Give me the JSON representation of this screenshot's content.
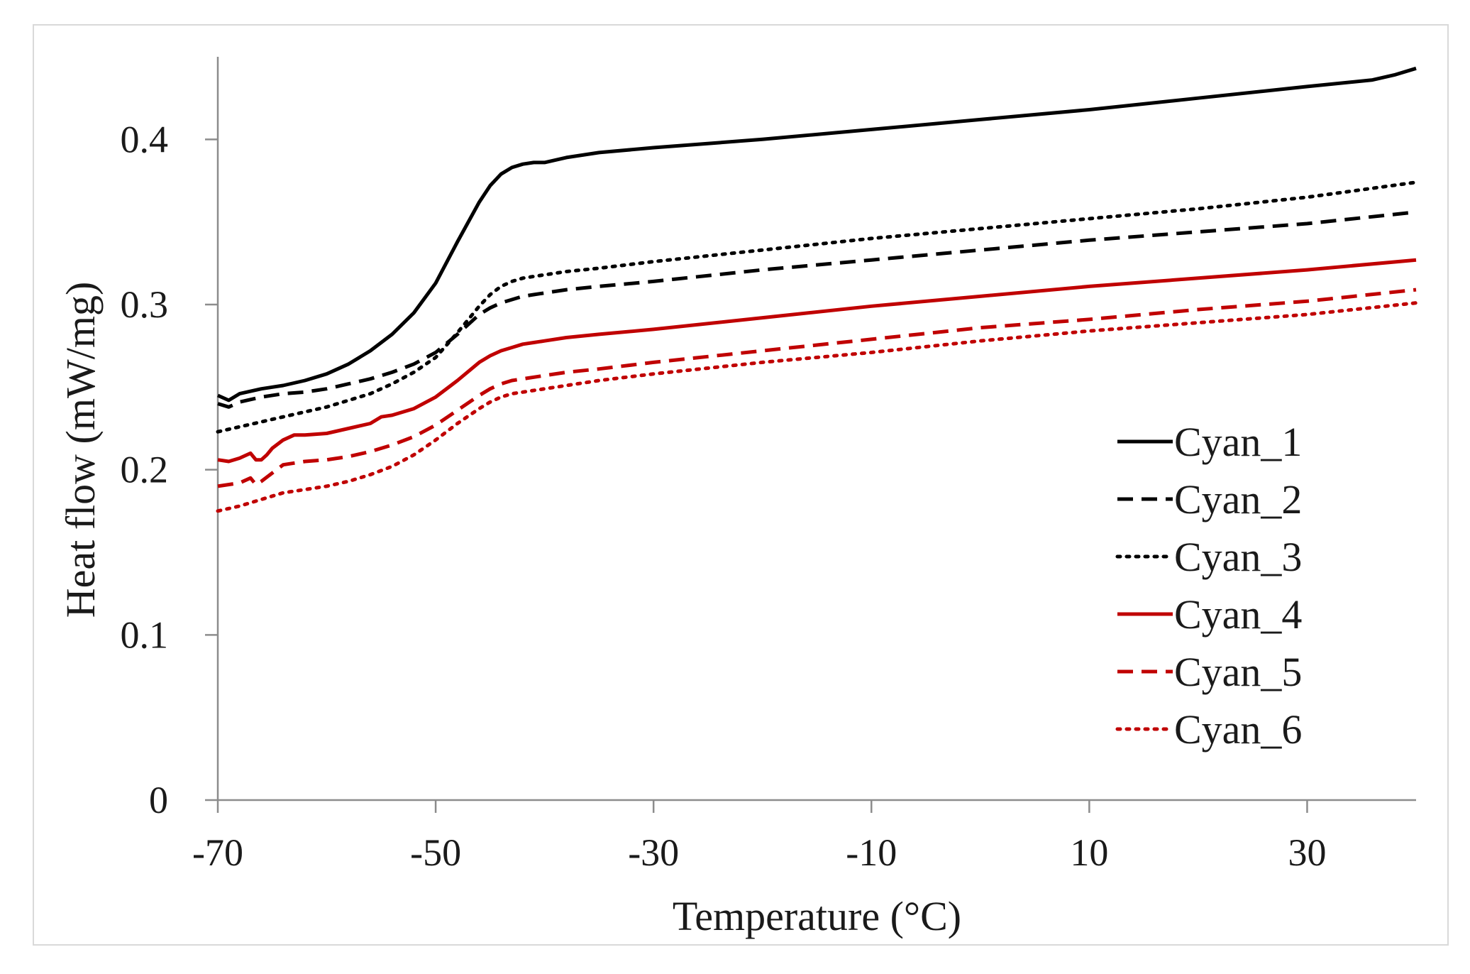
{
  "chart_data": {
    "type": "line",
    "title": "",
    "xlabel": "Temperature (°C)",
    "ylabel": "Heat flow (mW/mg)",
    "xlim": [
      -70,
      40
    ],
    "ylim": [
      0,
      0.45
    ],
    "xticks": [
      -70,
      -50,
      -30,
      -10,
      10,
      30
    ],
    "xtick_labels": [
      "-70",
      "-50",
      "-30",
      "-10",
      "10",
      "30"
    ],
    "yticks": [
      0,
      0.1,
      0.2,
      0.3,
      0.4
    ],
    "ytick_labels": [
      "0",
      "0.1",
      "0.2",
      "0.3",
      "0.4"
    ],
    "grid": false,
    "legend_position": "right",
    "series": [
      {
        "name": "Cyan_1",
        "color": "#000000",
        "dash": "solid",
        "x": [
          -70,
          -69,
          -68,
          -66,
          -64,
          -62,
          -60,
          -58,
          -56,
          -54,
          -52,
          -50,
          -48,
          -46,
          -45,
          -44,
          -43,
          -42,
          -41,
          -40,
          -38,
          -35,
          -30,
          -20,
          -10,
          0,
          10,
          20,
          30,
          36,
          38,
          40
        ],
        "y": [
          0.245,
          0.242,
          0.246,
          0.249,
          0.251,
          0.254,
          0.258,
          0.264,
          0.272,
          0.282,
          0.295,
          0.313,
          0.338,
          0.362,
          0.372,
          0.379,
          0.383,
          0.385,
          0.386,
          0.386,
          0.389,
          0.392,
          0.395,
          0.4,
          0.406,
          0.412,
          0.418,
          0.425,
          0.432,
          0.436,
          0.439,
          0.443
        ]
      },
      {
        "name": "Cyan_2",
        "color": "#000000",
        "dash": "dashed",
        "x": [
          -70,
          -69,
          -68,
          -66,
          -64,
          -62,
          -60,
          -58,
          -56,
          -54,
          -52,
          -50,
          -48,
          -46,
          -45,
          -44,
          -43,
          -42,
          -41,
          -40,
          -38,
          -35,
          -30,
          -20,
          -10,
          0,
          10,
          20,
          30,
          40
        ],
        "y": [
          0.24,
          0.238,
          0.241,
          0.244,
          0.246,
          0.247,
          0.249,
          0.252,
          0.255,
          0.259,
          0.264,
          0.271,
          0.282,
          0.294,
          0.298,
          0.301,
          0.303,
          0.305,
          0.306,
          0.307,
          0.309,
          0.311,
          0.314,
          0.321,
          0.327,
          0.333,
          0.339,
          0.344,
          0.349,
          0.356
        ]
      },
      {
        "name": "Cyan_3",
        "color": "#000000",
        "dash": "dotted",
        "x": [
          -70,
          -68,
          -66,
          -64,
          -62,
          -60,
          -58,
          -56,
          -54,
          -52,
          -50,
          -48,
          -46,
          -45,
          -44,
          -43,
          -42,
          -41,
          -40,
          -38,
          -35,
          -30,
          -20,
          -10,
          0,
          10,
          20,
          30,
          40
        ],
        "y": [
          0.223,
          0.226,
          0.229,
          0.232,
          0.235,
          0.238,
          0.242,
          0.246,
          0.252,
          0.259,
          0.268,
          0.283,
          0.299,
          0.306,
          0.311,
          0.314,
          0.316,
          0.317,
          0.318,
          0.32,
          0.322,
          0.326,
          0.333,
          0.34,
          0.346,
          0.352,
          0.358,
          0.365,
          0.374
        ]
      },
      {
        "name": "Cyan_4",
        "color": "#c00000",
        "dash": "solid",
        "x": [
          -70,
          -69,
          -68,
          -67,
          -66.5,
          -66,
          -65.5,
          -65,
          -64,
          -63,
          -62,
          -60,
          -58,
          -56,
          -55,
          -54,
          -52,
          -50,
          -48,
          -46,
          -45,
          -44,
          -43,
          -42,
          -41,
          -40,
          -38,
          -35,
          -30,
          -20,
          -10,
          0,
          10,
          20,
          30,
          40
        ],
        "y": [
          0.206,
          0.205,
          0.207,
          0.21,
          0.206,
          0.206,
          0.209,
          0.213,
          0.218,
          0.221,
          0.221,
          0.222,
          0.225,
          0.228,
          0.232,
          0.233,
          0.237,
          0.244,
          0.254,
          0.265,
          0.269,
          0.272,
          0.274,
          0.276,
          0.277,
          0.278,
          0.28,
          0.282,
          0.285,
          0.292,
          0.299,
          0.305,
          0.311,
          0.316,
          0.321,
          0.327
        ]
      },
      {
        "name": "Cyan_5",
        "color": "#c00000",
        "dash": "dashed",
        "x": [
          -70,
          -68,
          -67,
          -66.5,
          -66,
          -65,
          -64,
          -62,
          -60,
          -58,
          -56,
          -54,
          -52,
          -50,
          -48,
          -46,
          -45,
          -44,
          -43,
          -42,
          -40,
          -38,
          -35,
          -30,
          -20,
          -10,
          0,
          10,
          20,
          30,
          40
        ],
        "y": [
          0.19,
          0.192,
          0.195,
          0.191,
          0.193,
          0.198,
          0.203,
          0.205,
          0.206,
          0.208,
          0.211,
          0.215,
          0.22,
          0.227,
          0.236,
          0.245,
          0.249,
          0.252,
          0.254,
          0.255,
          0.257,
          0.259,
          0.261,
          0.265,
          0.272,
          0.279,
          0.286,
          0.291,
          0.297,
          0.302,
          0.309
        ]
      },
      {
        "name": "Cyan_6",
        "color": "#c00000",
        "dash": "dotted",
        "x": [
          -70,
          -68,
          -66,
          -64,
          -62,
          -60,
          -58,
          -56,
          -54,
          -52,
          -50,
          -48,
          -46,
          -45,
          -44,
          -43,
          -42,
          -40,
          -38,
          -35,
          -30,
          -20,
          -10,
          0,
          10,
          20,
          30,
          40
        ],
        "y": [
          0.175,
          0.178,
          0.182,
          0.186,
          0.188,
          0.19,
          0.193,
          0.197,
          0.202,
          0.209,
          0.218,
          0.228,
          0.237,
          0.241,
          0.244,
          0.246,
          0.247,
          0.249,
          0.251,
          0.254,
          0.258,
          0.265,
          0.271,
          0.278,
          0.284,
          0.289,
          0.294,
          0.301
        ]
      }
    ]
  }
}
